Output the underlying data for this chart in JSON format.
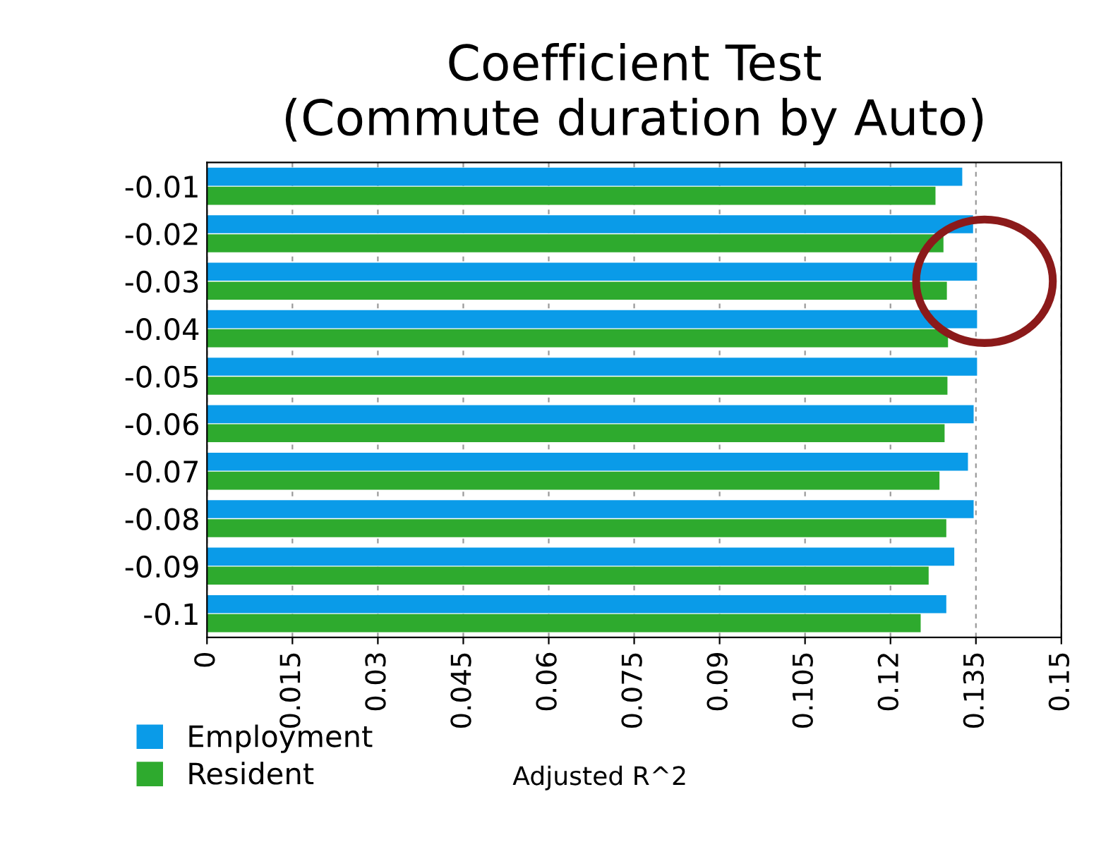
{
  "chart_data": {
    "type": "bar",
    "orientation": "horizontal",
    "title": "Coefficient Test\n(Commute duration by Auto)",
    "xlabel": "Adjusted R^2",
    "categories": [
      "-0.01",
      "-0.02",
      "-0.03",
      "-0.04",
      "-0.05",
      "-0.06",
      "-0.07",
      "-0.08",
      "-0.09",
      "-0.1"
    ],
    "series": [
      {
        "name": "Employment",
        "color": "#0a9be8",
        "values": [
          0.1326,
          0.1345,
          0.1352,
          0.1352,
          0.1352,
          0.1346,
          0.1336,
          0.1346,
          0.1312,
          0.1298
        ]
      },
      {
        "name": "Resident",
        "color": "#2eaa2e",
        "values": [
          0.1279,
          0.1293,
          0.1299,
          0.1301,
          0.13,
          0.1295,
          0.1286,
          0.1298,
          0.1267,
          0.1253
        ]
      }
    ],
    "xlim": [
      0,
      0.15
    ],
    "xticks": [
      0,
      0.015,
      0.03,
      0.045,
      0.06,
      0.075,
      0.09,
      0.105,
      0.12,
      0.135,
      0.15
    ],
    "grid": "x",
    "legend": "bottom left"
  }
}
